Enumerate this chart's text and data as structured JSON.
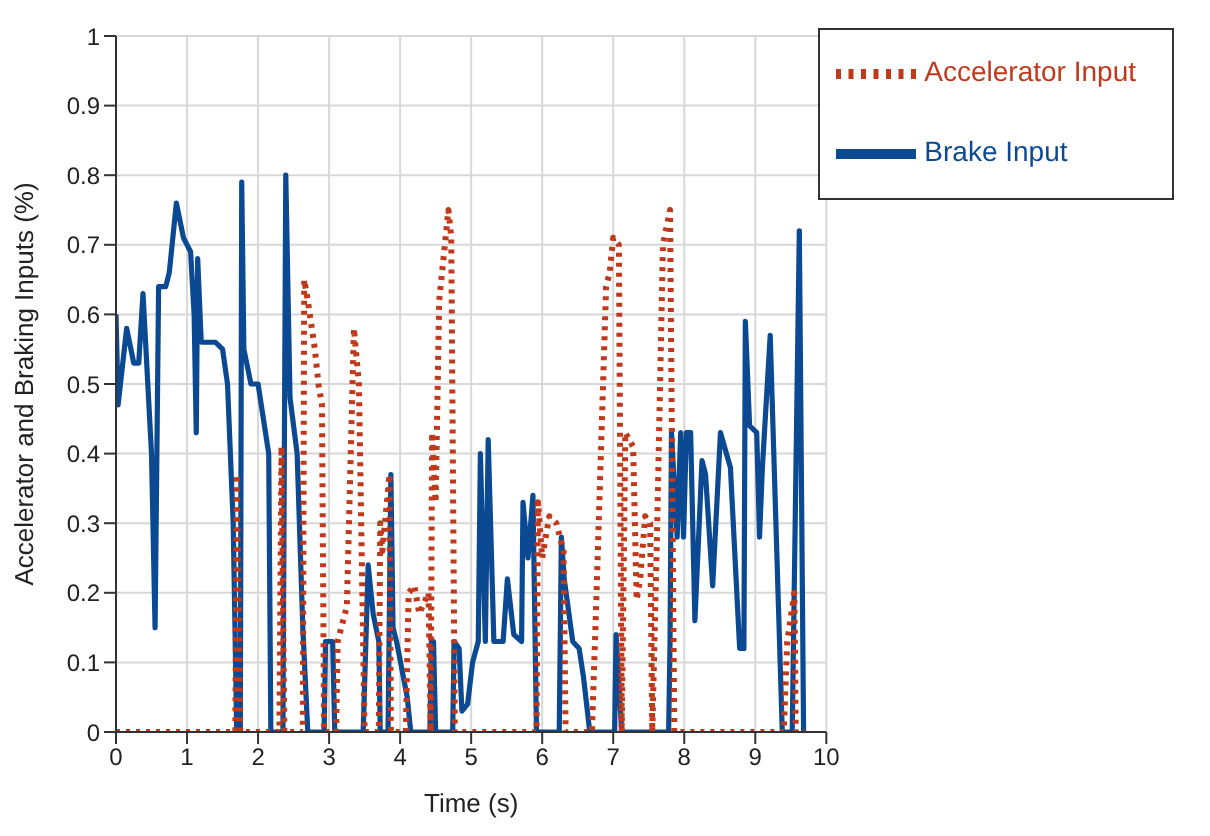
{
  "chart_data": {
    "type": "line",
    "xlabel": "Time (s)",
    "ylabel": "Accelerator and Braking Inputs (%)",
    "xlim": [
      0,
      10
    ],
    "xticks": [
      0,
      1,
      2,
      3,
      4,
      5,
      6,
      7,
      8,
      9,
      10
    ],
    "ylim": [
      0,
      1
    ],
    "yticks": [
      0,
      0.1,
      0.2,
      0.3,
      0.4,
      0.5,
      0.6,
      0.7,
      0.8,
      0.9,
      1
    ],
    "grid": true,
    "legend": "top right",
    "marker": "none",
    "series": [
      {
        "name": "Brake Input",
        "color": "#0b4a92",
        "line_style": "solid",
        "x": [
          0,
          0.03,
          0.15,
          0.25,
          0.32,
          0.38,
          0.5,
          0.55,
          0.6,
          0.7,
          0.75,
          0.85,
          0.95,
          1.05,
          1.1,
          1.13,
          1.15,
          1.2,
          1.4,
          1.5,
          1.57,
          1.65,
          1.7,
          1.75,
          1.77,
          1.8,
          1.9,
          2.0,
          2.15,
          2.18,
          2.35,
          2.39,
          2.45,
          2.55,
          2.63,
          2.7,
          2.93,
          2.95,
          3.05,
          3.08,
          3.48,
          3.55,
          3.62,
          3.7,
          3.72,
          3.83,
          3.87,
          3.9,
          3.95,
          4.1,
          4.15,
          4.42,
          4.44,
          4.47,
          4.5,
          4.74,
          4.76,
          4.83,
          4.87,
          4.95,
          5.02,
          5.1,
          5.13,
          5.2,
          5.24,
          5.32,
          5.45,
          5.51,
          5.6,
          5.71,
          5.73,
          5.8,
          5.87,
          5.92,
          6.24,
          6.27,
          6.31,
          6.43,
          6.52,
          6.58,
          6.67,
          7.02,
          7.04,
          7.12,
          7.78,
          7.8,
          7.82,
          7.9,
          7.95,
          7.99,
          8.03,
          8.09,
          8.15,
          8.25,
          8.3,
          8.4,
          8.51,
          8.65,
          8.78,
          8.84,
          8.86,
          8.92,
          9.02,
          9.06,
          9.1,
          9.21,
          9.38,
          9.52,
          9.62,
          9.68
        ],
        "values": [
          0.6,
          0.47,
          0.58,
          0.53,
          0.53,
          0.63,
          0.4,
          0.15,
          0.64,
          0.64,
          0.66,
          0.76,
          0.71,
          0.69,
          0.6,
          0.43,
          0.68,
          0.56,
          0.56,
          0.55,
          0.5,
          0.3,
          0,
          0,
          0.79,
          0.55,
          0.5,
          0.5,
          0.4,
          0,
          0,
          0.8,
          0.48,
          0.4,
          0.15,
          0,
          0,
          0.13,
          0.13,
          0,
          0,
          0.24,
          0.17,
          0.13,
          0,
          0,
          0.37,
          0.15,
          0.13,
          0.05,
          0,
          0,
          0.13,
          0.13,
          0,
          0,
          0.13,
          0.12,
          0.03,
          0.04,
          0.1,
          0.13,
          0.4,
          0.13,
          0.42,
          0.13,
          0.13,
          0.22,
          0.14,
          0.13,
          0.33,
          0.25,
          0.34,
          0,
          0,
          0.28,
          0.22,
          0.13,
          0.12,
          0.08,
          0,
          0,
          0.14,
          0,
          0,
          0.13,
          0.43,
          0.28,
          0.43,
          0.28,
          0.43,
          0.43,
          0.16,
          0.39,
          0.37,
          0.21,
          0.43,
          0.38,
          0.12,
          0.12,
          0.59,
          0.44,
          0.43,
          0.28,
          0.38,
          0.57,
          0,
          0,
          0.72,
          0
        ]
      },
      {
        "name": "Accelerator Input",
        "color": "#c0391b",
        "line_style": "dotted",
        "x": [
          0,
          1.68,
          1.7,
          1.75,
          2.3,
          2.33,
          2.37,
          2.63,
          2.65,
          2.7,
          2.8,
          2.85,
          2.9,
          2.93,
          3.1,
          3.12,
          3.25,
          3.35,
          3.42,
          3.5,
          3.7,
          3.72,
          3.75,
          3.85,
          3.87,
          4.08,
          4.12,
          4.2,
          4.27,
          4.4,
          4.43,
          4.45,
          4.5,
          4.55,
          4.68,
          4.72,
          4.77,
          5.92,
          5.94,
          6.0,
          6.1,
          6.2,
          6.3,
          6.33,
          6.7,
          6.75,
          6.9,
          6.95,
          7.0,
          7.08,
          7.12,
          7.17,
          7.28,
          7.33,
          7.38,
          7.45,
          7.52,
          7.55,
          7.62,
          7.7,
          7.8,
          7.86,
          9.4,
          9.45,
          9.55,
          9.57,
          9.7
        ],
        "values": [
          0,
          0,
          0.37,
          0,
          0,
          0.41,
          0,
          0,
          0.65,
          0.62,
          0.55,
          0.5,
          0.47,
          0,
          0,
          0.13,
          0.18,
          0.58,
          0.5,
          0,
          0,
          0.3,
          0.26,
          0.37,
          0,
          0,
          0.2,
          0.21,
          0.17,
          0.2,
          0,
          0.43,
          0.33,
          0.62,
          0.75,
          0.71,
          0,
          0,
          0.33,
          0.25,
          0.31,
          0.3,
          0.26,
          0,
          0,
          0.15,
          0.64,
          0.66,
          0.71,
          0.7,
          0,
          0.43,
          0.41,
          0.19,
          0.22,
          0.31,
          0.3,
          0,
          0.3,
          0.7,
          0.75,
          0,
          0,
          0.13,
          0.2,
          0,
          0
        ]
      }
    ]
  }
}
